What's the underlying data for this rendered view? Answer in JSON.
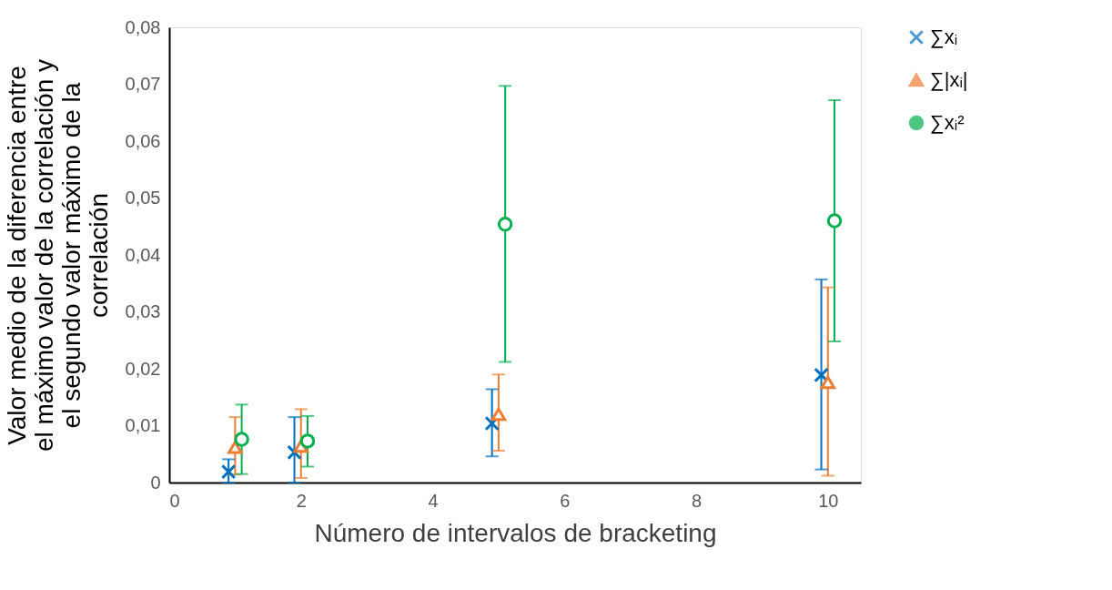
{
  "chart_data": {
    "type": "scatter",
    "xlabel": "Número de intervalos de bracketing",
    "ylabel": "Valor medio de la diferencia entre el máximo valor de la correlación y el segundo valor máximo de la correlación",
    "xlim": [
      0,
      10.5
    ],
    "xticks": [
      0,
      2,
      4,
      6,
      8,
      10
    ],
    "ylim": [
      0,
      0.08
    ],
    "yticks": [
      0,
      {
        "value": 0.01,
        "label": "0,01"
      },
      {
        "value": 0.02,
        "label": "0,02"
      },
      {
        "value": 0.03,
        "label": "0,03"
      },
      {
        "value": 0.04,
        "label": "0,04"
      },
      {
        "value": 0.05,
        "label": "0,05"
      },
      {
        "value": 0.06,
        "label": "0,06"
      },
      {
        "value": 0.07,
        "label": "0,07"
      },
      {
        "value": 0.08,
        "label": "0,08"
      }
    ],
    "grid": false,
    "legend": "right",
    "series": [
      {
        "name": "∑xᵢ",
        "color": "#0070c0",
        "marker": "cross",
        "x": [
          0.9,
          1.9,
          4.9,
          9.9
        ],
        "values": [
          0.0019,
          0.0053,
          0.0104,
          0.0189
        ],
        "errors": [
          [
            0,
            0.0041
          ],
          [
            0,
            0.0115
          ],
          [
            0.0046,
            0.0164
          ],
          [
            0.0023,
            0.0357
          ]
        ]
      },
      {
        "name": "∑|xᵢ|",
        "color": "#ed7d31",
        "marker": "triangle",
        "x": [
          1,
          2,
          5,
          10
        ],
        "values": [
          0.0062,
          0.0064,
          0.012,
          0.0176
        ],
        "errors": [
          [
            0.0014,
            0.0115
          ],
          [
            0.0008,
            0.0129
          ],
          [
            0.0056,
            0.019
          ],
          [
            0.0012,
            0.0343
          ]
        ]
      },
      {
        "name": "∑xᵢ²",
        "color": "#00b050",
        "marker": "circle",
        "x": [
          1.1,
          2.1,
          5.1,
          10.1
        ],
        "values": [
          0.0076,
          0.0073,
          0.0454,
          0.046
        ],
        "errors": [
          [
            0.0015,
            0.0137
          ],
          [
            0.0028,
            0.0117
          ],
          [
            0.0212,
            0.0697
          ],
          [
            0.0248,
            0.0672
          ]
        ]
      }
    ]
  }
}
